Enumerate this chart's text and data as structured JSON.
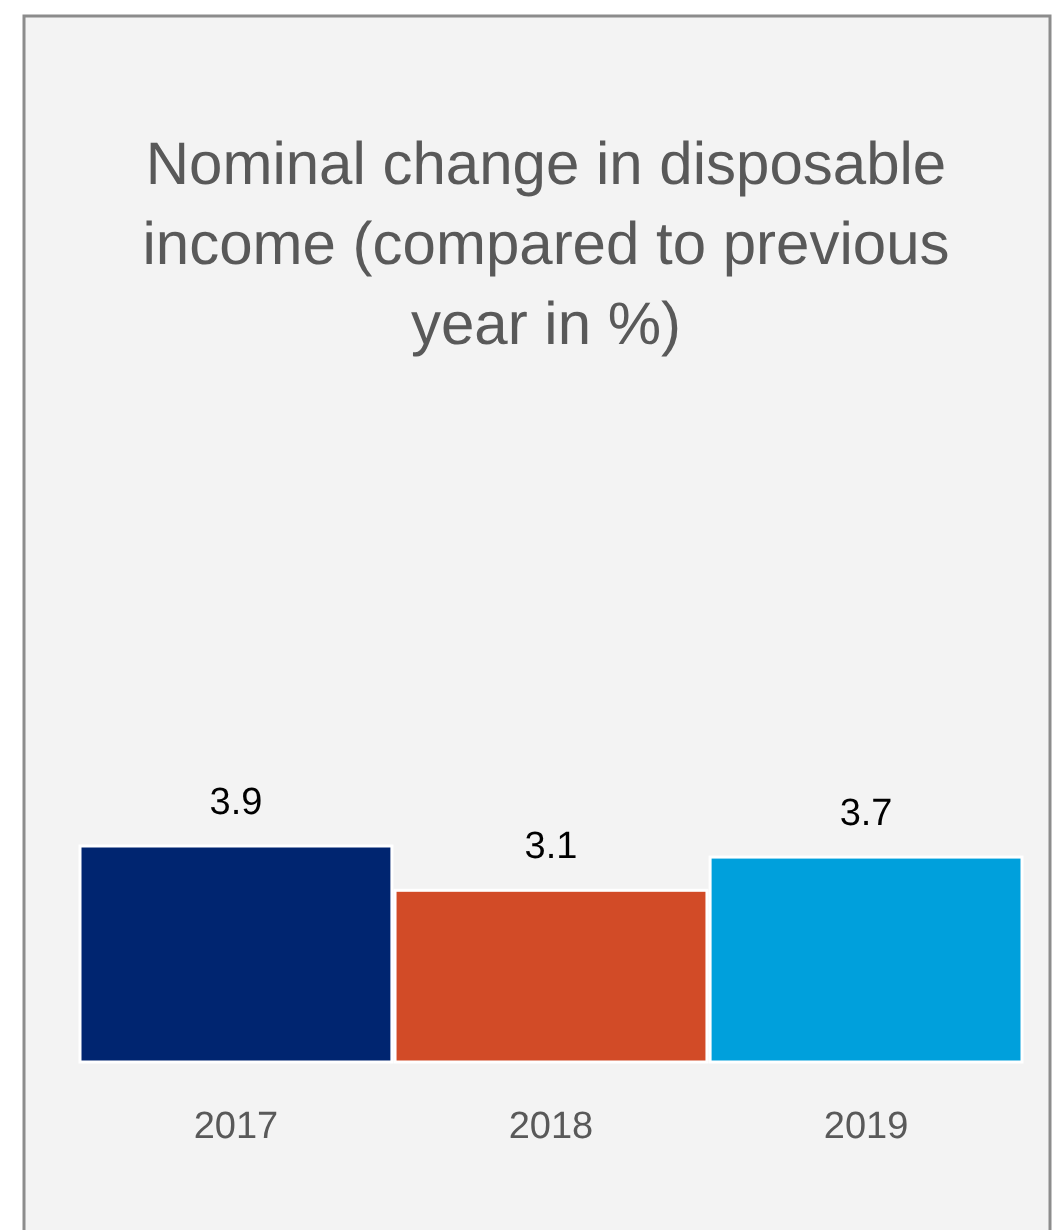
{
  "chart_data": {
    "type": "bar",
    "title": "Nominal change in disposable income (compared to previous year in %)",
    "categories": [
      "2017",
      "2018",
      "2019"
    ],
    "values": [
      3.9,
      3.1,
      3.7
    ],
    "colors": [
      "#002570",
      "#d24b27",
      "#00a0dc"
    ],
    "data_labels": true,
    "tick_labels": "x"
  }
}
